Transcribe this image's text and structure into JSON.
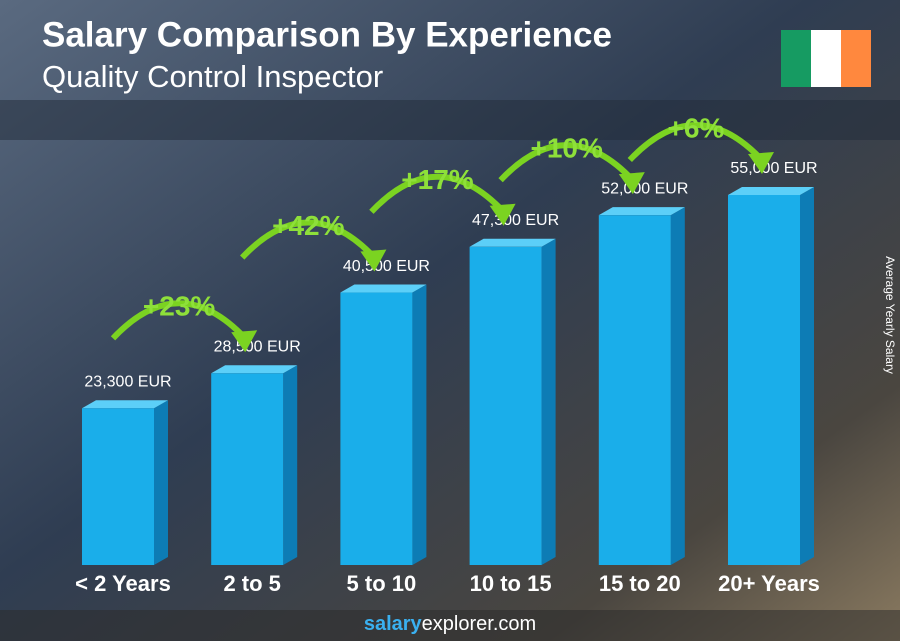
{
  "chart_data": {
    "type": "bar3d",
    "title": "Salary Comparison By Experience",
    "subtitle": "Quality Control Inspector",
    "y_axis_label": "Average Yearly Salary",
    "categories": [
      "< 2 Years",
      "2 to 5",
      "5 to 10",
      "10 to 15",
      "15 to 20",
      "20+ Years"
    ],
    "values": [
      23300,
      28500,
      40500,
      47300,
      52000,
      55000
    ],
    "value_labels": [
      "23,300 EUR",
      "28,500 EUR",
      "40,500 EUR",
      "47,300 EUR",
      "52,000 EUR",
      "55,000 EUR"
    ],
    "changes": [
      "+23%",
      "+42%",
      "+17%",
      "+10%",
      "+6%"
    ],
    "color": "#1aaeea",
    "footer": {
      "brand": "salary",
      "rest": "explorer.com"
    }
  }
}
